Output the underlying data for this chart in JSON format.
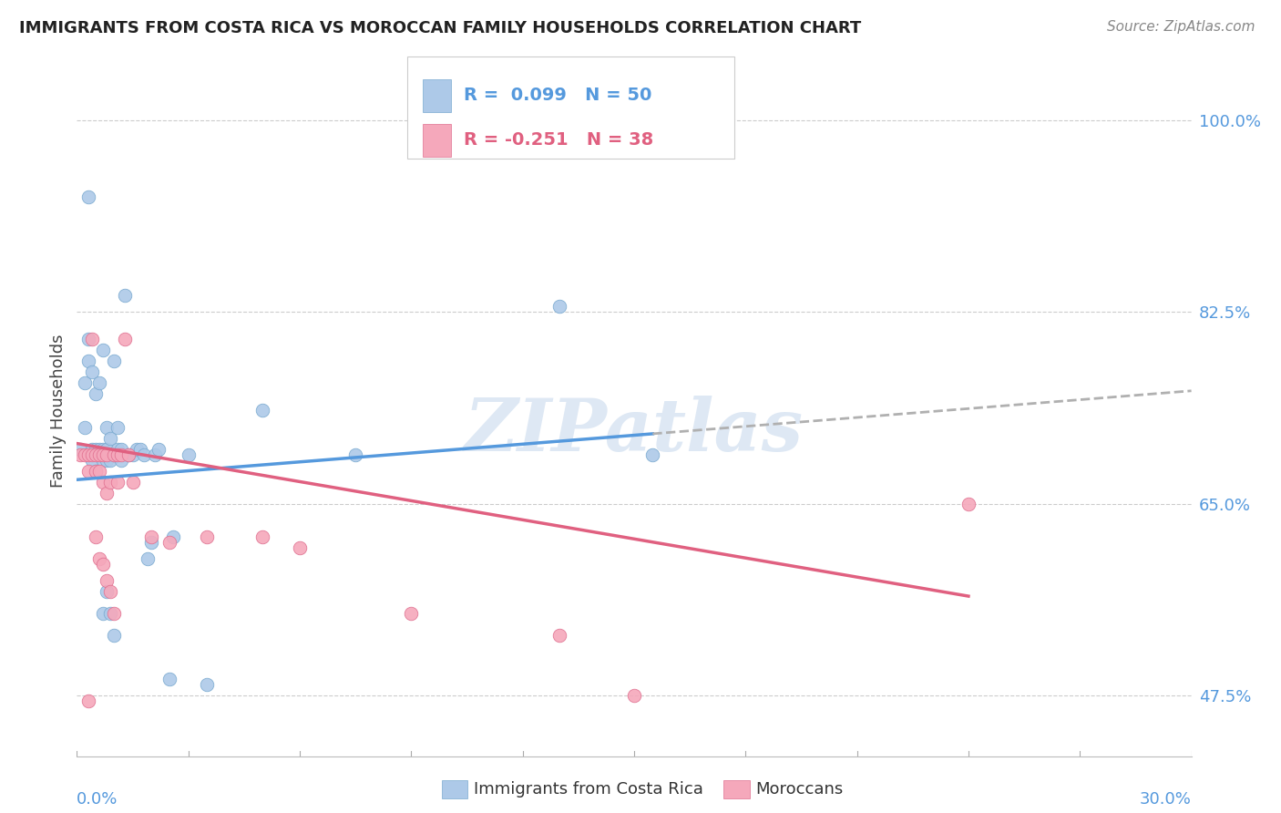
{
  "title": "IMMIGRANTS FROM COSTA RICA VS MOROCCAN FAMILY HOUSEHOLDS CORRELATION CHART",
  "source": "Source: ZipAtlas.com",
  "ylabel": "Family Households",
  "ytick_labels": [
    "47.5%",
    "65.0%",
    "82.5%",
    "100.0%"
  ],
  "ytick_values": [
    0.475,
    0.65,
    0.825,
    1.0
  ],
  "xmin": 0.0,
  "xmax": 0.3,
  "ymin": 0.42,
  "ymax": 1.05,
  "color_blue": "#adc9e8",
  "color_blue_edge": "#7aaad0",
  "color_pink": "#f5a8bb",
  "color_pink_edge": "#e07090",
  "color_blue_line": "#5599dd",
  "color_pink_line": "#e06080",
  "color_dash": "#b0b0b0",
  "color_grid": "#cccccc",
  "watermark_color": "#d0dff0",
  "scatter_blue": [
    [
      0.001,
      0.7
    ],
    [
      0.002,
      0.72
    ],
    [
      0.002,
      0.76
    ],
    [
      0.003,
      0.78
    ],
    [
      0.003,
      0.8
    ],
    [
      0.003,
      0.93
    ],
    [
      0.004,
      0.77
    ],
    [
      0.004,
      0.7
    ],
    [
      0.004,
      0.69
    ],
    [
      0.005,
      0.75
    ],
    [
      0.005,
      0.7
    ],
    [
      0.005,
      0.68
    ],
    [
      0.006,
      0.76
    ],
    [
      0.006,
      0.7
    ],
    [
      0.007,
      0.79
    ],
    [
      0.007,
      0.7
    ],
    [
      0.007,
      0.69
    ],
    [
      0.007,
      0.55
    ],
    [
      0.008,
      0.72
    ],
    [
      0.008,
      0.7
    ],
    [
      0.008,
      0.69
    ],
    [
      0.008,
      0.57
    ],
    [
      0.009,
      0.71
    ],
    [
      0.009,
      0.69
    ],
    [
      0.009,
      0.55
    ],
    [
      0.01,
      0.78
    ],
    [
      0.01,
      0.695
    ],
    [
      0.01,
      0.53
    ],
    [
      0.011,
      0.72
    ],
    [
      0.011,
      0.7
    ],
    [
      0.012,
      0.7
    ],
    [
      0.012,
      0.69
    ],
    [
      0.013,
      0.84
    ],
    [
      0.014,
      0.695
    ],
    [
      0.015,
      0.695
    ],
    [
      0.016,
      0.7
    ],
    [
      0.017,
      0.7
    ],
    [
      0.018,
      0.695
    ],
    [
      0.019,
      0.6
    ],
    [
      0.02,
      0.615
    ],
    [
      0.021,
      0.695
    ],
    [
      0.022,
      0.7
    ],
    [
      0.025,
      0.49
    ],
    [
      0.026,
      0.62
    ],
    [
      0.03,
      0.695
    ],
    [
      0.035,
      0.485
    ],
    [
      0.05,
      0.735
    ],
    [
      0.075,
      0.695
    ],
    [
      0.13,
      0.83
    ],
    [
      0.155,
      0.695
    ]
  ],
  "scatter_pink": [
    [
      0.001,
      0.695
    ],
    [
      0.002,
      0.695
    ],
    [
      0.003,
      0.68
    ],
    [
      0.003,
      0.695
    ],
    [
      0.004,
      0.695
    ],
    [
      0.004,
      0.8
    ],
    [
      0.005,
      0.695
    ],
    [
      0.005,
      0.68
    ],
    [
      0.005,
      0.62
    ],
    [
      0.006,
      0.695
    ],
    [
      0.006,
      0.68
    ],
    [
      0.006,
      0.6
    ],
    [
      0.007,
      0.695
    ],
    [
      0.007,
      0.67
    ],
    [
      0.007,
      0.595
    ],
    [
      0.008,
      0.695
    ],
    [
      0.008,
      0.66
    ],
    [
      0.008,
      0.58
    ],
    [
      0.009,
      0.67
    ],
    [
      0.009,
      0.57
    ],
    [
      0.01,
      0.695
    ],
    [
      0.01,
      0.55
    ],
    [
      0.011,
      0.695
    ],
    [
      0.011,
      0.67
    ],
    [
      0.012,
      0.695
    ],
    [
      0.013,
      0.8
    ],
    [
      0.014,
      0.695
    ],
    [
      0.015,
      0.67
    ],
    [
      0.003,
      0.47
    ],
    [
      0.02,
      0.62
    ],
    [
      0.025,
      0.615
    ],
    [
      0.035,
      0.62
    ],
    [
      0.05,
      0.62
    ],
    [
      0.06,
      0.61
    ],
    [
      0.09,
      0.55
    ],
    [
      0.15,
      0.475
    ],
    [
      0.24,
      0.65
    ],
    [
      0.13,
      0.53
    ]
  ],
  "trend_blue_intercept": 0.672,
  "trend_blue_slope": 0.27,
  "trend_blue_solid_end": 0.155,
  "trend_pink_intercept": 0.705,
  "trend_pink_slope": -0.58,
  "trend_pink_end": 0.24
}
